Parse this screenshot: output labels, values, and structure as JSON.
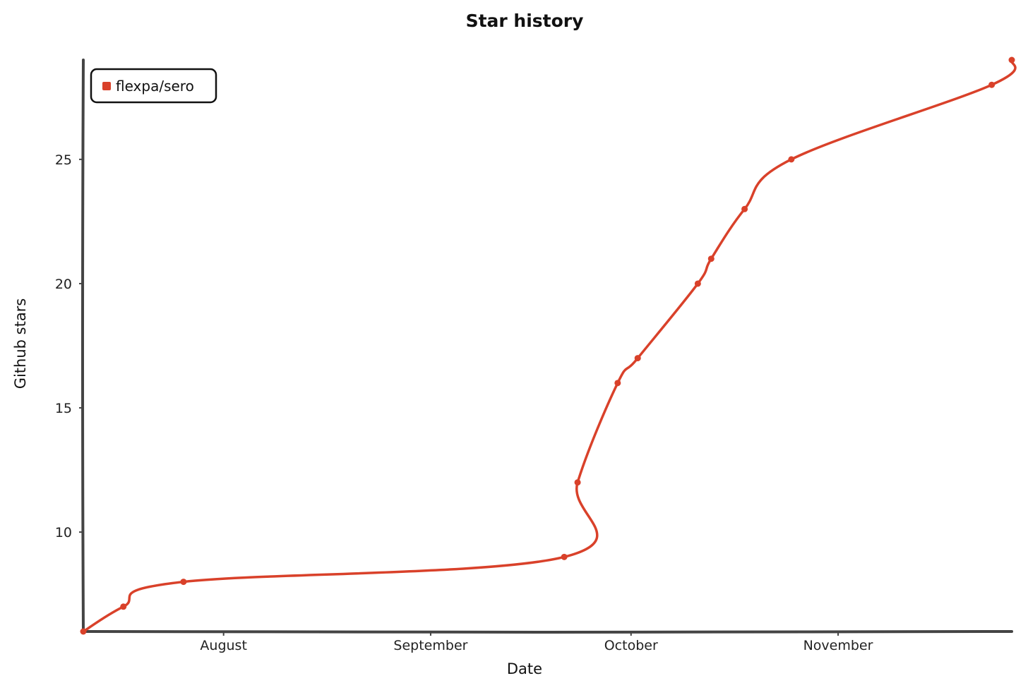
{
  "chart_data": {
    "type": "line",
    "title": "Star history",
    "xlabel": "Date",
    "ylabel": "Github stars",
    "x_ticks": [
      {
        "label": "August",
        "date": "2022-08-01"
      },
      {
        "label": "September",
        "date": "2022-09-01"
      },
      {
        "label": "October",
        "date": "2022-10-01"
      },
      {
        "label": "November",
        "date": "2022-11-01"
      }
    ],
    "y_ticks": [
      10,
      15,
      20,
      25
    ],
    "xlim": [
      "2022-07-11",
      "2022-11-27"
    ],
    "ylim": [
      6,
      29
    ],
    "grid": false,
    "legend_position": "top-left",
    "series": [
      {
        "name": "flexpa/sero",
        "color": "#d9412a",
        "points": [
          {
            "x": "2022-07-11",
            "y": 6
          },
          {
            "x": "2022-07-17",
            "y": 7
          },
          {
            "x": "2022-07-26",
            "y": 8
          },
          {
            "x": "2022-09-21",
            "y": 9
          },
          {
            "x": "2022-09-23",
            "y": 12
          },
          {
            "x": "2022-09-29",
            "y": 16
          },
          {
            "x": "2022-10-02",
            "y": 17
          },
          {
            "x": "2022-10-11",
            "y": 20
          },
          {
            "x": "2022-10-13",
            "y": 21
          },
          {
            "x": "2022-10-18",
            "y": 23
          },
          {
            "x": "2022-10-25",
            "y": 25
          },
          {
            "x": "2022-11-24",
            "y": 28
          },
          {
            "x": "2022-11-27",
            "y": 29
          }
        ]
      }
    ]
  }
}
